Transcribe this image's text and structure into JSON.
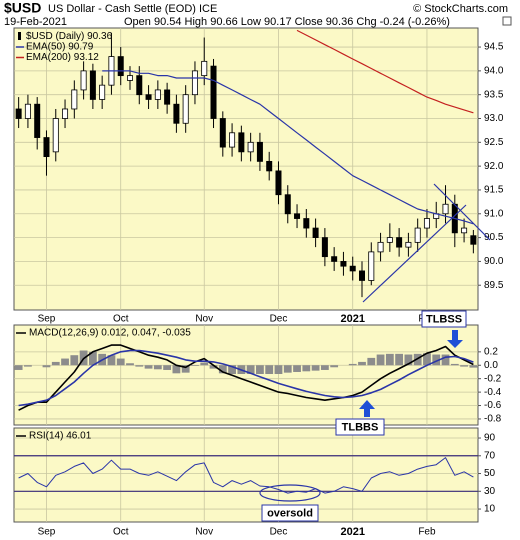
{
  "chart_data": [
    {
      "type": "candlestick",
      "symbol": "$USD",
      "name": "US Dollar - Cash Settle (EOD) ICE",
      "source": "© StockCharts.com",
      "date": "19-Feb-2021",
      "quote": "Open 90.54 High 90.66 Low 90.17 Close 90.36 Chg -0.24 (-0.26%)",
      "categories": [
        null,
        null,
        null,
        "Sep",
        null,
        null,
        null,
        null,
        null,
        null,
        null,
        "Oct",
        null,
        null,
        null,
        null,
        null,
        null,
        null,
        null,
        "Nov",
        null,
        null,
        null,
        null,
        null,
        null,
        null,
        "Dec",
        null,
        null,
        null,
        null,
        null,
        null,
        null,
        "2021",
        null,
        null,
        null,
        null,
        null,
        null,
        null,
        "Feb",
        null,
        null,
        null,
        null,
        null
      ],
      "ohlc": {
        "name": "$USD (Daily) 90.36",
        "open": [
          93.2,
          93.0,
          93.3,
          92.6,
          92.3,
          93.0,
          93.2,
          93.6,
          94.0,
          93.4,
          93.7,
          94.3,
          93.8,
          93.9,
          93.5,
          93.4,
          93.6,
          93.3,
          92.9,
          93.5,
          93.9,
          94.1,
          93.0,
          92.4,
          92.7,
          92.3,
          92.5,
          92.1,
          91.9,
          91.4,
          91.0,
          90.9,
          90.7,
          90.5,
          90.1,
          90.0,
          89.9,
          89.8,
          89.6,
          90.2,
          90.4,
          90.5,
          90.3,
          90.4,
          90.7,
          90.9,
          91.0,
          91.2,
          90.6,
          90.54
        ],
        "high": [
          93.45,
          93.5,
          93.45,
          92.75,
          93.2,
          93.4,
          93.8,
          94.2,
          94.15,
          93.9,
          94.8,
          94.5,
          94.1,
          94.1,
          93.7,
          93.8,
          93.75,
          93.5,
          93.7,
          94.2,
          94.7,
          94.25,
          93.15,
          92.9,
          92.85,
          92.7,
          92.7,
          92.3,
          92.1,
          91.6,
          91.2,
          91.1,
          90.9,
          90.7,
          90.3,
          90.2,
          90.1,
          90.0,
          90.4,
          90.6,
          90.8,
          90.7,
          90.6,
          90.9,
          91.1,
          91.25,
          91.6,
          91.4,
          90.9,
          90.66
        ],
        "low": [
          92.8,
          92.8,
          92.35,
          91.8,
          92.1,
          92.8,
          93.0,
          93.4,
          93.2,
          93.2,
          93.5,
          93.7,
          93.6,
          93.3,
          93.2,
          93.2,
          93.1,
          92.7,
          92.7,
          93.3,
          93.7,
          92.8,
          92.2,
          92.2,
          92.1,
          92.1,
          91.9,
          91.7,
          91.2,
          90.8,
          90.7,
          90.5,
          90.3,
          89.9,
          89.8,
          89.7,
          89.6,
          89.25,
          89.5,
          90.0,
          90.2,
          90.1,
          90.1,
          90.2,
          90.5,
          90.7,
          90.8,
          90.3,
          90.4,
          90.17
        ],
        "close": [
          93.0,
          93.3,
          92.6,
          92.2,
          93.0,
          93.2,
          93.6,
          94.0,
          93.4,
          93.7,
          94.3,
          93.9,
          93.9,
          93.5,
          93.4,
          93.6,
          93.3,
          92.9,
          93.5,
          94.0,
          94.2,
          93.0,
          92.4,
          92.7,
          92.3,
          92.5,
          92.1,
          91.9,
          91.4,
          91.0,
          90.9,
          90.7,
          90.5,
          90.1,
          90.0,
          89.9,
          89.8,
          89.6,
          90.2,
          90.4,
          90.5,
          90.3,
          90.4,
          90.7,
          90.9,
          91.0,
          91.2,
          90.6,
          90.7,
          90.36
        ]
      },
      "series": [
        {
          "name": "EMA(50) 90.79",
          "color": "#2a35a8",
          "values": [
            null,
            null,
            null,
            null,
            null,
            null,
            null,
            null,
            null,
            94.0,
            94.0,
            94.0,
            94.0,
            93.95,
            93.95,
            93.9,
            93.9,
            93.85,
            93.85,
            93.85,
            93.85,
            93.8,
            93.7,
            93.6,
            93.5,
            93.4,
            93.3,
            93.15,
            93.0,
            92.85,
            92.7,
            92.55,
            92.4,
            92.25,
            92.1,
            91.95,
            91.8,
            91.7,
            91.6,
            91.5,
            91.4,
            91.3,
            91.2,
            91.1,
            91.05,
            91.0,
            90.95,
            90.9,
            90.85,
            90.79
          ]
        },
        {
          "name": "EMA(200) 93.12",
          "color": "#c42020",
          "values": [
            null,
            null,
            null,
            null,
            null,
            null,
            null,
            null,
            null,
            null,
            null,
            null,
            null,
            null,
            null,
            null,
            null,
            null,
            null,
            null,
            null,
            null,
            null,
            null,
            null,
            null,
            null,
            null,
            null,
            null,
            94.85,
            94.75,
            94.65,
            94.55,
            94.45,
            94.35,
            94.25,
            94.15,
            94.05,
            93.95,
            93.85,
            93.75,
            93.65,
            93.55,
            93.45,
            93.38,
            93.3,
            93.24,
            93.18,
            93.12
          ]
        }
      ],
      "ylim": [
        88.98,
        94.9
      ],
      "yticks": [
        89.5,
        {
          "value": 90,
          "label": "90.0"
        },
        90.5,
        {
          "value": 91,
          "label": "91.0"
        },
        91.5,
        {
          "value": 92,
          "label": "92.0"
        },
        92.5,
        {
          "value": 93,
          "label": "93.0"
        },
        93.5,
        {
          "value": 94,
          "label": "94.0"
        },
        94.5
      ],
      "grid": true,
      "annotations": [
        "TLBSS"
      ]
    },
    {
      "type": "macd",
      "title": "MACD(12,26,9) 0.012, 0.047, -0.035",
      "series": [
        {
          "style": "bar",
          "color": "#8c8c8c",
          "values": [
            -0.07,
            -0.02,
            0,
            -0.03,
            0.05,
            0.1,
            0.15,
            0.22,
            0.2,
            0.17,
            0.15,
            0.1,
            0.03,
            -0.02,
            -0.05,
            -0.06,
            -0.07,
            -0.12,
            -0.11,
            -0.01,
            0.04,
            -0.05,
            -0.12,
            -0.13,
            -0.13,
            -0.13,
            -0.13,
            -0.13,
            -0.13,
            -0.11,
            -0.1,
            -0.09,
            -0.08,
            -0.07,
            -0.03,
            0,
            0.02,
            0.05,
            0.11,
            0.16,
            0.17,
            0.17,
            0.16,
            0.17,
            0.18,
            0.16,
            0.16,
            0.02,
            -0.02,
            -0.035
          ]
        },
        {
          "style": "line",
          "color": "#000000",
          "values": [
            -0.67,
            -0.6,
            -0.55,
            -0.55,
            -0.4,
            -0.25,
            -0.1,
            0.1,
            0.2,
            0.25,
            0.3,
            0.3,
            0.25,
            0.2,
            0.15,
            0.12,
            0.08,
            0.0,
            -0.03,
            0.05,
            0.1,
            0.0,
            -0.1,
            -0.15,
            -0.2,
            -0.25,
            -0.3,
            -0.35,
            -0.4,
            -0.42,
            -0.45,
            -0.48,
            -0.5,
            -0.52,
            -0.5,
            -0.48,
            -0.45,
            -0.4,
            -0.3,
            -0.2,
            -0.12,
            -0.05,
            0.02,
            0.1,
            0.18,
            0.22,
            0.28,
            0.15,
            0.08,
            0.012
          ]
        },
        {
          "style": "line",
          "color": "#2a35a8",
          "values": [
            -0.6,
            -0.58,
            -0.55,
            -0.52,
            -0.45,
            -0.35,
            -0.25,
            -0.12,
            0.0,
            0.08,
            0.15,
            0.2,
            0.22,
            0.22,
            0.2,
            0.18,
            0.15,
            0.12,
            0.08,
            0.06,
            0.06,
            0.05,
            0.02,
            -0.02,
            -0.07,
            -0.12,
            -0.17,
            -0.22,
            -0.27,
            -0.31,
            -0.35,
            -0.39,
            -0.42,
            -0.45,
            -0.47,
            -0.48,
            -0.47,
            -0.45,
            -0.41,
            -0.36,
            -0.29,
            -0.22,
            -0.14,
            -0.07,
            0.0,
            0.06,
            0.12,
            0.13,
            0.1,
            0.047
          ]
        }
      ],
      "ylim": [
        -0.89,
        0.6
      ],
      "yticks": [
        0.2,
        {
          "value": 0,
          "label": "0.0"
        },
        -0.2,
        -0.4,
        -0.6,
        -0.8
      ],
      "grid": true,
      "annotations": [
        "TLBBS"
      ]
    },
    {
      "type": "line",
      "title": "RSI(14) 46.01",
      "series": [
        {
          "style": "line",
          "color": "#2a35a8",
          "values": [
            45,
            50,
            40,
            35,
            48,
            52,
            58,
            62,
            50,
            55,
            65,
            55,
            55,
            50,
            48,
            52,
            47,
            42,
            52,
            60,
            62,
            40,
            35,
            42,
            38,
            42,
            36,
            35,
            32,
            28,
            30,
            29,
            33,
            28,
            30,
            35,
            33,
            30,
            45,
            50,
            52,
            48,
            50,
            55,
            58,
            60,
            68,
            48,
            52,
            46.01
          ]
        }
      ],
      "ylim": [
        -4.6,
        101.3
      ],
      "yticks": [
        90,
        70,
        50,
        30,
        10
      ],
      "reference_lines": [
        30,
        70
      ],
      "grid": true,
      "annotations": [
        "oversold"
      ]
    }
  ]
}
